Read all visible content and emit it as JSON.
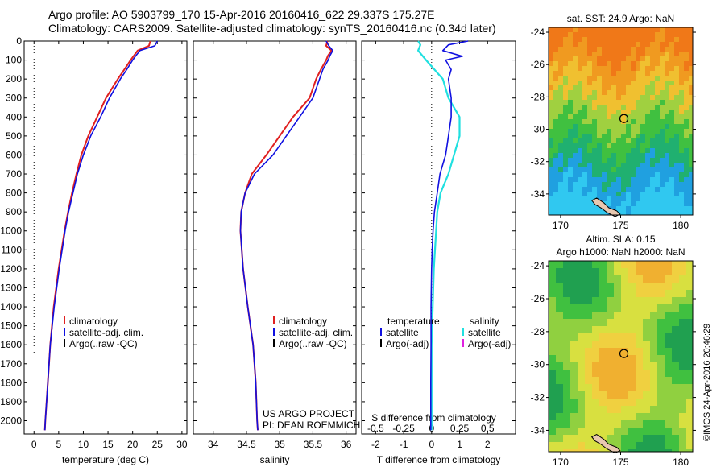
{
  "header": {
    "line1": "Argo profile: AO 5903799_170 15-Apr-2016 20160416_622 29.337S 175.27E",
    "line2": "Climatology: CARS2009. Satellite-adjusted climatology: synTS_20160416.nc (0.34d later)"
  },
  "stamp": "©IMOS 24-Apr-2016 20:46:29",
  "credit": {
    "line1": "US ARGO PROJECT",
    "line2": "PI: DEAN ROEMMICH"
  },
  "colors": {
    "climatology": "#e02020",
    "satellite": "#1010e0",
    "argo": "#000000",
    "satellite_s": "#20e0e0",
    "argo_s": "#e020e0"
  },
  "chart_data": [
    {
      "type": "line",
      "xlabel": "temperature (deg C)",
      "xlim": [
        -2,
        31
      ],
      "xticks": [
        0,
        5,
        10,
        15,
        20,
        25,
        30
      ],
      "ylim": [
        0,
        2070
      ],
      "yticks": [
        0,
        100,
        200,
        300,
        400,
        500,
        600,
        700,
        800,
        900,
        1000,
        1100,
        1200,
        1300,
        1400,
        1500,
        1600,
        1700,
        1800,
        1900,
        2000
      ],
      "legend": [
        "climatology",
        "satellite-adj. clim.",
        "Argo(..raw -QC)"
      ],
      "series": [
        {
          "name": "climatology",
          "depth": [
            0,
            25,
            50,
            75,
            100,
            150,
            200,
            300,
            400,
            500,
            600,
            700,
            800,
            900,
            1000,
            1200,
            1400,
            1600,
            1800,
            2000,
            2050
          ],
          "values": [
            23.6,
            23.3,
            21.0,
            20.3,
            19.6,
            18.3,
            17.0,
            14.6,
            12.8,
            11.0,
            9.6,
            8.6,
            7.7,
            6.9,
            6.2,
            5.0,
            4.0,
            3.3,
            2.8,
            2.3,
            2.2
          ]
        },
        {
          "name": "satellite-adj. clim.",
          "depth": [
            0,
            25,
            50,
            75,
            100,
            150,
            200,
            300,
            400,
            500,
            600,
            700,
            800,
            900,
            1000,
            1200,
            1400,
            1600,
            1800,
            2000,
            2050
          ],
          "values": [
            25.0,
            24.5,
            21.5,
            20.7,
            20.0,
            18.8,
            17.5,
            15.3,
            13.5,
            11.5,
            10.0,
            8.8,
            7.9,
            7.0,
            6.3,
            5.1,
            4.1,
            3.3,
            2.8,
            2.3,
            2.2
          ]
        }
      ]
    },
    {
      "type": "line",
      "xlabel": "salinity",
      "xlim": [
        33.7,
        36.15
      ],
      "xticks": [
        34,
        34.5,
        35,
        35.5,
        36
      ],
      "legend": [
        "climatology",
        "satellite-adj. clim.",
        "Argo(..raw -QC)"
      ],
      "series": [
        {
          "name": "climatology",
          "depth": [
            0,
            25,
            50,
            75,
            100,
            150,
            200,
            300,
            400,
            500,
            600,
            700,
            800,
            900,
            1000,
            1200,
            1400,
            1600,
            1800,
            2000,
            2050
          ],
          "values": [
            35.72,
            35.7,
            35.78,
            35.73,
            35.7,
            35.62,
            35.55,
            35.45,
            35.2,
            35.0,
            34.8,
            34.58,
            34.48,
            34.42,
            34.41,
            34.45,
            34.52,
            34.6,
            34.64,
            34.66,
            34.67
          ]
        },
        {
          "name": "satellite-adj. clim.",
          "depth": [
            0,
            25,
            50,
            75,
            100,
            150,
            200,
            300,
            400,
            500,
            600,
            700,
            800,
            900,
            1000,
            1200,
            1400,
            1600,
            1800,
            2000,
            2050
          ],
          "values": [
            35.7,
            35.74,
            35.8,
            35.76,
            35.73,
            35.65,
            35.6,
            35.5,
            35.3,
            35.1,
            34.9,
            34.62,
            34.48,
            34.42,
            34.41,
            34.45,
            34.52,
            34.6,
            34.64,
            34.66,
            34.67
          ]
        }
      ]
    },
    {
      "type": "line",
      "xlabel": "T difference from climatology",
      "title": "S difference from climatology",
      "xlim": [
        -2.5,
        3.0
      ],
      "xticks": [
        -2,
        -1,
        0,
        1,
        2
      ],
      "secondary_xticks": [
        -0.5,
        -0.25,
        0,
        0.25,
        0.5
      ],
      "legend_titles": [
        "temperature",
        "salinity"
      ],
      "legend": [
        "satellite",
        "Argo(-adj)",
        "satellite",
        "Argo(-adj)"
      ],
      "series": [
        {
          "name": "temperature satellite",
          "depth": [
            0,
            20,
            50,
            80,
            100,
            150,
            200,
            300,
            400,
            500,
            600,
            700,
            800,
            900,
            1000,
            1100,
            1200,
            1400,
            1600,
            1800,
            2000,
            2050
          ],
          "values": [
            1.3,
            0.6,
            0.4,
            1.1,
            0.5,
            0.7,
            0.6,
            0.7,
            0.7,
            0.6,
            0.5,
            0.3,
            0.2,
            0.1,
            0.05,
            0.02,
            0.0,
            -0.02,
            -0.02,
            -0.03,
            -0.03,
            -0.03
          ]
        },
        {
          "name": "salinity satellite",
          "depth": [
            0,
            20,
            50,
            100,
            200,
            300,
            400,
            500,
            600,
            700,
            800,
            900,
            1000,
            1200,
            1400,
            1600,
            1800,
            2000,
            2050
          ],
          "values": [
            -0.12,
            -0.1,
            -0.12,
            -0.05,
            0.1,
            0.15,
            0.25,
            0.25,
            0.2,
            0.15,
            0.08,
            0.05,
            0.04,
            0.02,
            0.01,
            0.0,
            0.0,
            0.0,
            0.0
          ]
        }
      ]
    },
    {
      "type": "heatmap",
      "title": "sat. SST: 24.9 Argo: NaN",
      "xlim": [
        169,
        181
      ],
      "ylim": [
        -35.3,
        -23.7
      ],
      "xticks": [
        170,
        175,
        180
      ],
      "yticks": [
        -24,
        -26,
        -28,
        -30,
        -32,
        -34
      ],
      "marker": {
        "lon": 175.27,
        "lat": -29.337
      }
    },
    {
      "type": "heatmap",
      "title": "Altim. SLA: 0.15",
      "subtitle": "Argo h1000: NaN h2000: NaN",
      "xlim": [
        169,
        181
      ],
      "ylim": [
        -35.3,
        -23.7
      ],
      "xticks": [
        170,
        175,
        180
      ],
      "yticks": [
        -24,
        -26,
        -28,
        -30,
        -32,
        -34
      ],
      "marker": {
        "lon": 175.27,
        "lat": -29.337
      }
    }
  ]
}
